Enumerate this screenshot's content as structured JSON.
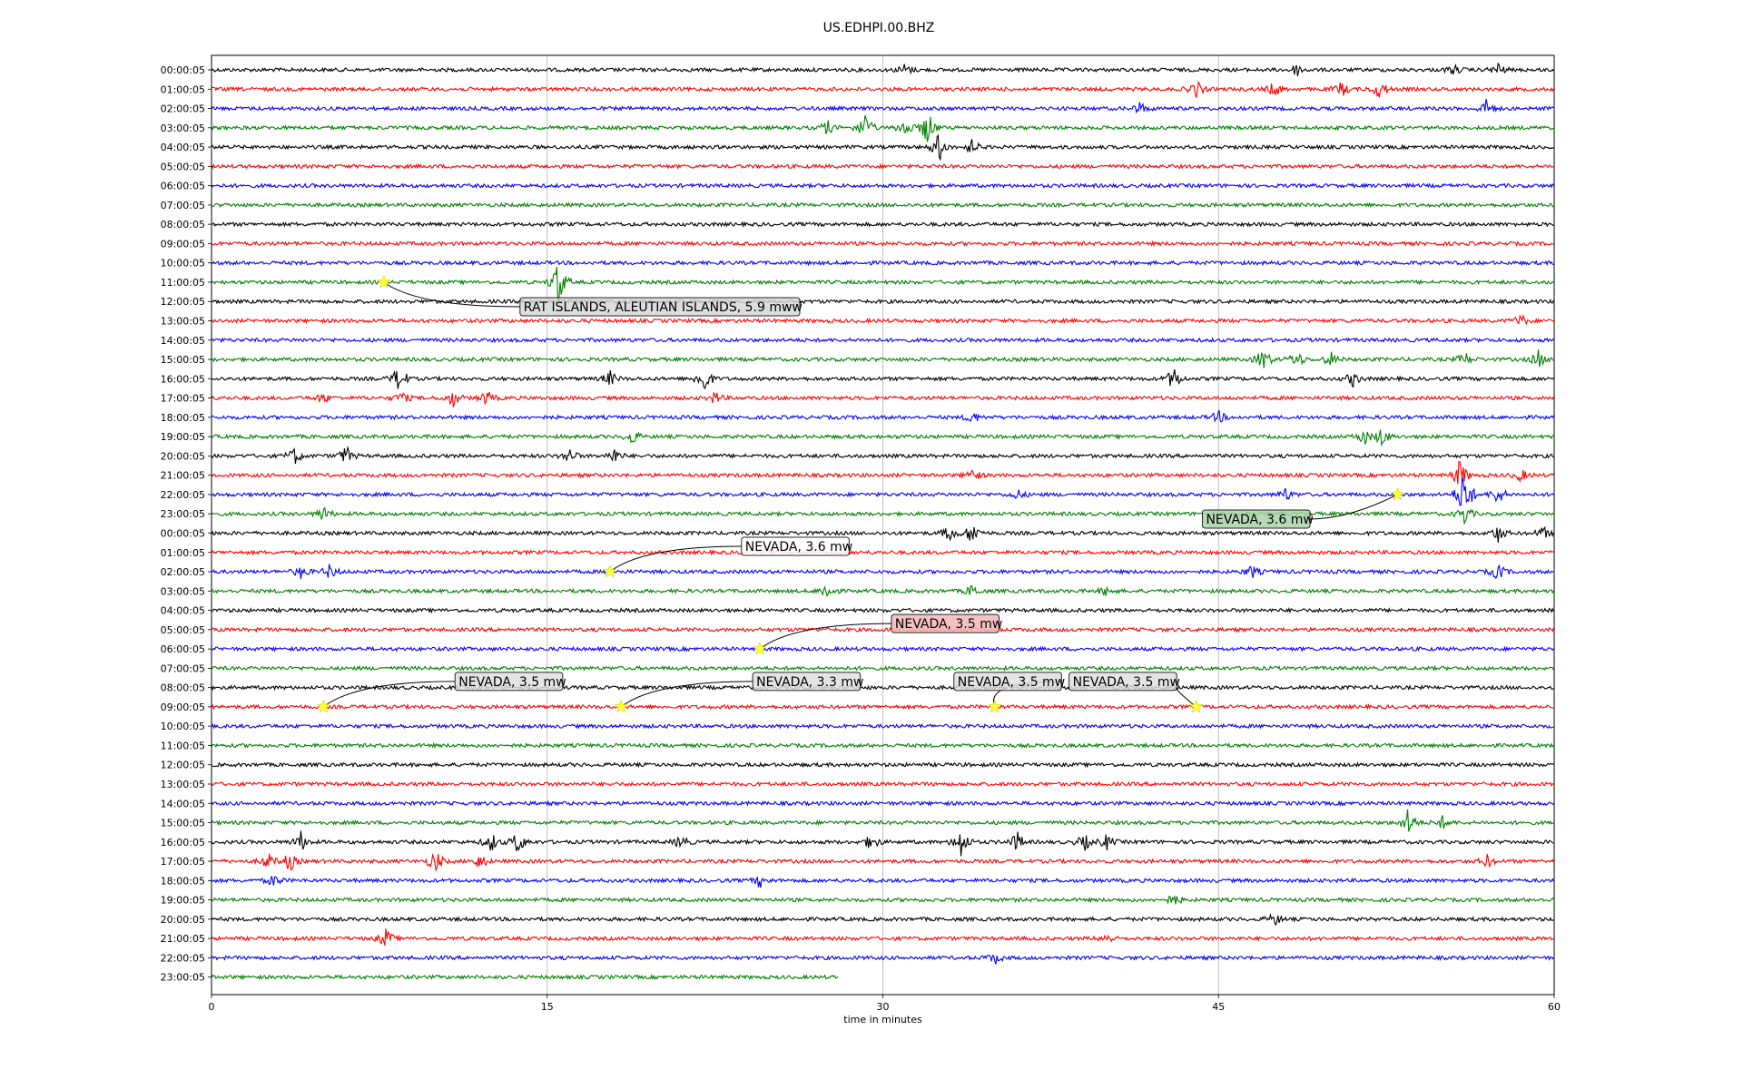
{
  "chart_data": {
    "type": "line",
    "title": "US.EDHPI.00.BHZ",
    "xlabel": "time in minutes",
    "ylabel": "",
    "xlim": [
      0,
      60
    ],
    "x_ticks": [
      "0",
      "15",
      "30",
      "45",
      "60"
    ],
    "grid": "vertical",
    "colors": [
      "#000000",
      "#ff0000",
      "#0000ff",
      "#008000"
    ],
    "row_labels": [
      "00:00:05",
      "01:00:05",
      "02:00:05",
      "03:00:05",
      "04:00:05",
      "05:00:05",
      "06:00:05",
      "07:00:05",
      "08:00:05",
      "09:00:05",
      "10:00:05",
      "11:00:05",
      "12:00:05",
      "13:00:05",
      "14:00:05",
      "15:00:05",
      "16:00:05",
      "17:00:05",
      "18:00:05",
      "19:00:05",
      "20:00:05",
      "21:00:05",
      "22:00:05",
      "23:00:05",
      "00:00:05",
      "01:00:05",
      "02:00:05",
      "03:00:05",
      "04:00:05",
      "05:00:05",
      "06:00:05",
      "07:00:05",
      "08:00:05",
      "09:00:05",
      "10:00:05",
      "11:00:05",
      "12:00:05",
      "13:00:05",
      "14:00:05",
      "15:00:05",
      "16:00:05",
      "17:00:05",
      "18:00:05",
      "19:00:05",
      "20:00:05",
      "21:00:05",
      "22:00:05",
      "23:00:05"
    ],
    "last_row_end_minute": 28,
    "events": [
      {
        "label": "RAT ISLANDS, ALEUTIAN ISLANDS, 5.9 mww",
        "row": 11,
        "minute": 7.7,
        "box_color": "#d8d8d8"
      },
      {
        "label": "NEVADA, 3.6 mw",
        "row": 22,
        "minute": 53.0,
        "box_color": "#a9d4a9"
      },
      {
        "label": "NEVADA, 3.6 mw",
        "row": 26,
        "minute": 17.8,
        "box_color": "#ffffff"
      },
      {
        "label": "NEVADA, 3.5 mw",
        "row": 30,
        "minute": 24.5,
        "box_color": "#f4b8b8"
      },
      {
        "label": "NEVADA, 3.5 mw",
        "row": 33,
        "minute": 5.0,
        "box_color": "#e0e0e0"
      },
      {
        "label": "NEVADA, 3.3 mw",
        "row": 33,
        "minute": 18.3,
        "box_color": "#e0e0e0"
      },
      {
        "label": "NEVADA, 3.5 mw",
        "row": 33,
        "minute": 35.0,
        "box_color": "#e0e0e0"
      },
      {
        "label": "NEVADA, 3.5 mw",
        "row": 33,
        "minute": 44.0,
        "box_color": "#e0e0e0"
      }
    ],
    "bursts": [
      {
        "row": 0,
        "minute": 31.0,
        "amp": 0.5
      },
      {
        "row": 0,
        "minute": 48.5,
        "amp": 0.5
      },
      {
        "row": 0,
        "minute": 55.5,
        "amp": 0.4
      },
      {
        "row": 0,
        "minute": 57.5,
        "amp": 0.5
      },
      {
        "row": 1,
        "minute": 44.0,
        "amp": 0.7
      },
      {
        "row": 1,
        "minute": 47.5,
        "amp": 0.6
      },
      {
        "row": 1,
        "minute": 50.5,
        "amp": 0.6
      },
      {
        "row": 1,
        "minute": 52.2,
        "amp": 0.8
      },
      {
        "row": 2,
        "minute": 41.5,
        "amp": 0.5
      },
      {
        "row": 2,
        "minute": 57.0,
        "amp": 0.8
      },
      {
        "row": 3,
        "minute": 27.5,
        "amp": 0.6
      },
      {
        "row": 3,
        "minute": 29.2,
        "amp": 1.2
      },
      {
        "row": 3,
        "minute": 31.0,
        "amp": 0.8
      },
      {
        "row": 3,
        "minute": 32.0,
        "amp": 1.5
      },
      {
        "row": 4,
        "minute": 32.5,
        "amp": 1.2
      },
      {
        "row": 4,
        "minute": 34.0,
        "amp": 0.6
      },
      {
        "row": 11,
        "minute": 15.5,
        "amp": 2.0
      },
      {
        "row": 13,
        "minute": 58.5,
        "amp": 0.5
      },
      {
        "row": 15,
        "minute": 47.0,
        "amp": 1.0
      },
      {
        "row": 15,
        "minute": 48.5,
        "amp": 0.7
      },
      {
        "row": 15,
        "minute": 50.0,
        "amp": 0.6
      },
      {
        "row": 15,
        "minute": 56.0,
        "amp": 0.6
      },
      {
        "row": 15,
        "minute": 59.3,
        "amp": 0.7
      },
      {
        "row": 16,
        "minute": 8.4,
        "amp": 1.2
      },
      {
        "row": 16,
        "minute": 17.8,
        "amp": 0.6
      },
      {
        "row": 16,
        "minute": 22.0,
        "amp": 1.3
      },
      {
        "row": 16,
        "minute": 43.0,
        "amp": 1.0
      },
      {
        "row": 16,
        "minute": 51.0,
        "amp": 0.6
      },
      {
        "row": 17,
        "minute": 5.0,
        "amp": 0.4
      },
      {
        "row": 17,
        "minute": 8.5,
        "amp": 0.5
      },
      {
        "row": 17,
        "minute": 10.8,
        "amp": 0.7
      },
      {
        "row": 17,
        "minute": 12.3,
        "amp": 0.6
      },
      {
        "row": 17,
        "minute": 22.5,
        "amp": 0.5
      },
      {
        "row": 18,
        "minute": 34.0,
        "amp": 0.5
      },
      {
        "row": 18,
        "minute": 45.0,
        "amp": 0.5
      },
      {
        "row": 19,
        "minute": 18.8,
        "amp": 0.6
      },
      {
        "row": 19,
        "minute": 51.5,
        "amp": 0.7
      },
      {
        "row": 19,
        "minute": 52.3,
        "amp": 0.8
      },
      {
        "row": 20,
        "minute": 3.7,
        "amp": 0.7
      },
      {
        "row": 20,
        "minute": 6.0,
        "amp": 0.8
      },
      {
        "row": 20,
        "minute": 16.0,
        "amp": 0.6
      },
      {
        "row": 20,
        "minute": 18.0,
        "amp": 0.6
      },
      {
        "row": 21,
        "minute": 34.0,
        "amp": 0.6
      },
      {
        "row": 21,
        "minute": 55.8,
        "amp": 1.3
      },
      {
        "row": 21,
        "minute": 58.5,
        "amp": 0.5
      },
      {
        "row": 22,
        "minute": 56.0,
        "amp": 2.5
      },
      {
        "row": 22,
        "minute": 57.5,
        "amp": 0.8
      },
      {
        "row": 22,
        "minute": 36.0,
        "amp": 0.4
      },
      {
        "row": 22,
        "minute": 48.0,
        "amp": 0.5
      },
      {
        "row": 23,
        "minute": 5.0,
        "amp": 0.6
      },
      {
        "row": 23,
        "minute": 56.0,
        "amp": 0.8
      },
      {
        "row": 24,
        "minute": 33.0,
        "amp": 0.7
      },
      {
        "row": 24,
        "minute": 34.0,
        "amp": 1.0
      },
      {
        "row": 24,
        "minute": 57.5,
        "amp": 0.7
      },
      {
        "row": 24,
        "minute": 59.5,
        "amp": 0.5
      },
      {
        "row": 26,
        "minute": 4.0,
        "amp": 0.5
      },
      {
        "row": 26,
        "minute": 5.3,
        "amp": 0.6
      },
      {
        "row": 26,
        "minute": 46.5,
        "amp": 0.5
      },
      {
        "row": 26,
        "minute": 57.5,
        "amp": 0.7
      },
      {
        "row": 27,
        "minute": 27.5,
        "amp": 0.7
      },
      {
        "row": 27,
        "minute": 34.0,
        "amp": 0.5
      },
      {
        "row": 27,
        "minute": 40.0,
        "amp": 0.4
      },
      {
        "row": 39,
        "minute": 53.5,
        "amp": 1.2
      },
      {
        "row": 39,
        "minute": 55.0,
        "amp": 0.5
      },
      {
        "row": 40,
        "minute": 4.0,
        "amp": 0.8
      },
      {
        "row": 40,
        "minute": 12.5,
        "amp": 0.8
      },
      {
        "row": 40,
        "minute": 13.7,
        "amp": 1.0
      },
      {
        "row": 40,
        "minute": 21.0,
        "amp": 0.6
      },
      {
        "row": 40,
        "minute": 29.5,
        "amp": 0.7
      },
      {
        "row": 40,
        "minute": 33.5,
        "amp": 1.3
      },
      {
        "row": 40,
        "minute": 36.0,
        "amp": 0.8
      },
      {
        "row": 40,
        "minute": 39.0,
        "amp": 0.7
      },
      {
        "row": 40,
        "minute": 40.0,
        "amp": 0.6
      },
      {
        "row": 41,
        "minute": 2.5,
        "amp": 0.7
      },
      {
        "row": 41,
        "minute": 3.5,
        "amp": 0.8
      },
      {
        "row": 41,
        "minute": 10.0,
        "amp": 1.0
      },
      {
        "row": 41,
        "minute": 12.0,
        "amp": 0.6
      },
      {
        "row": 41,
        "minute": 57.0,
        "amp": 0.5
      },
      {
        "row": 42,
        "minute": 2.8,
        "amp": 0.5
      },
      {
        "row": 42,
        "minute": 24.5,
        "amp": 0.5
      },
      {
        "row": 43,
        "minute": 43.0,
        "amp": 0.5
      },
      {
        "row": 44,
        "minute": 47.5,
        "amp": 0.5
      },
      {
        "row": 45,
        "minute": 7.8,
        "amp": 0.8
      },
      {
        "row": 45,
        "minute": 40.0,
        "amp": 0.4
      },
      {
        "row": 46,
        "minute": 35.0,
        "amp": 0.5
      }
    ]
  }
}
